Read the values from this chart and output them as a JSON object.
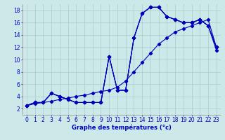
{
  "xlabel": "Graphe des températures (°c)",
  "bg_color": "#cce8e8",
  "grid_color": "#aacccc",
  "line_color": "#0000bb",
  "hours": [
    0,
    1,
    2,
    3,
    4,
    5,
    6,
    7,
    8,
    9,
    10,
    11,
    12,
    13,
    14,
    15,
    16,
    17,
    18,
    19,
    20,
    21,
    22,
    23
  ],
  "temp_curve1": [
    2.5,
    3.0,
    3.0,
    4.5,
    4.0,
    3.5,
    3.0,
    3.0,
    3.0,
    3.0,
    10.5,
    5.0,
    5.0,
    13.5,
    17.5,
    18.5,
    18.5,
    17.0,
    16.5,
    16.0,
    16.0,
    16.5,
    15.5,
    11.5
  ],
  "temp_curve2": [
    2.5,
    3.0,
    3.0,
    4.5,
    4.0,
    3.5,
    3.0,
    3.0,
    3.0,
    3.0,
    10.5,
    5.0,
    5.0,
    13.5,
    17.5,
    18.5,
    18.5,
    17.0,
    16.5,
    16.0,
    16.0,
    16.5,
    15.5,
    12.0
  ],
  "temp_curve3": [
    2.5,
    3.0,
    3.0,
    4.5,
    4.0,
    3.5,
    3.0,
    3.0,
    3.0,
    3.0,
    10.5,
    5.0,
    5.0,
    13.5,
    17.5,
    18.5,
    18.5,
    17.0,
    16.5,
    16.0,
    16.0,
    16.5,
    15.5,
    12.0
  ],
  "temp_diag": [
    2.5,
    2.8,
    3.0,
    3.2,
    3.5,
    3.7,
    4.0,
    4.2,
    4.5,
    4.8,
    5.0,
    5.5,
    6.5,
    8.0,
    9.5,
    11.0,
    12.5,
    13.5,
    14.5,
    15.0,
    15.5,
    16.0,
    16.5,
    12.0
  ],
  "ylim_min": 1,
  "ylim_max": 19,
  "yticks": [
    2,
    4,
    6,
    8,
    10,
    12,
    14,
    16,
    18
  ],
  "xticks": [
    0,
    1,
    2,
    3,
    4,
    5,
    6,
    7,
    8,
    9,
    10,
    11,
    12,
    13,
    14,
    15,
    16,
    17,
    18,
    19,
    20,
    21,
    22,
    23
  ],
  "tick_fontsize": 5.5,
  "xlabel_fontsize": 6,
  "lw": 0.8,
  "marker_size": 2.2
}
